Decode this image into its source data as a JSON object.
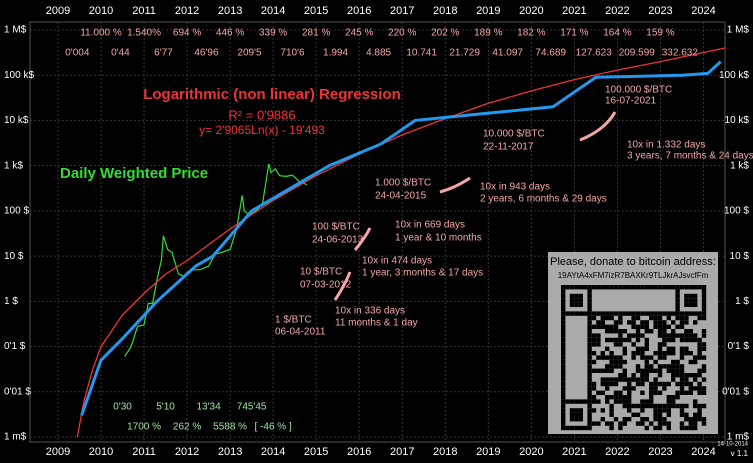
{
  "chart_data": {
    "type": "line",
    "log_y": true,
    "grid": true,
    "xlim": [
      2008.35,
      2024.5
    ],
    "xticks": [
      2009,
      2010,
      2011,
      2012,
      2013,
      2014,
      2015,
      2016,
      2017,
      2018,
      2019,
      2020,
      2021,
      2022,
      2023,
      2024
    ],
    "ylim": [
      0.001,
      1000000
    ],
    "yticks": [
      {
        "value": 1000000,
        "label": "1 M$"
      },
      {
        "value": 100000,
        "label": "100 k$"
      },
      {
        "value": 10000,
        "label": "10 k$"
      },
      {
        "value": 1000,
        "label": "1 k$"
      },
      {
        "value": 100,
        "label": "100 $"
      },
      {
        "value": 10,
        "label": "10 $"
      },
      {
        "value": 1,
        "label": "1 $"
      },
      {
        "value": 0.1,
        "label": "0'1 $"
      },
      {
        "value": 0.01,
        "label": "0'01 $"
      },
      {
        "value": 0.001,
        "label": "1 m$"
      }
    ],
    "series": [
      {
        "name": "Daily Weighted Price",
        "color": "#33dd33",
        "x": [
          2010.55,
          2010.7,
          2010.85,
          2011.0,
          2011.1,
          2011.2,
          2011.3,
          2011.4,
          2011.45,
          2011.55,
          2011.65,
          2011.8,
          2011.95,
          2012.1,
          2012.3,
          2012.5,
          2012.65,
          2012.8,
          2013.0,
          2013.15,
          2013.28,
          2013.33,
          2013.45,
          2013.6,
          2013.75,
          2013.9,
          2013.95,
          2014.05,
          2014.15,
          2014.3,
          2014.45,
          2014.6,
          2014.78
        ],
        "values": [
          0.06,
          0.1,
          0.28,
          0.3,
          0.9,
          0.9,
          3,
          8,
          28,
          14,
          12,
          4,
          3.5,
          5,
          5,
          6,
          11,
          12,
          14,
          40,
          220,
          100,
          80,
          100,
          140,
          1100,
          700,
          850,
          600,
          580,
          620,
          450,
          380
        ]
      },
      {
        "name": "Logarithmic (non linear) Regression",
        "color": "#ee3333",
        "x": [
          2009.45,
          2009.6,
          2009.8,
          2010.0,
          2010.5,
          2011.0,
          2011.5,
          2012.0,
          2013.0,
          2014.0,
          2015.0,
          2016.0,
          2017.0,
          2018.0,
          2019.0,
          2020.0,
          2021.0,
          2022.0,
          2023.0,
          2024.5
        ],
        "values": [
          0.001,
          0.006,
          0.03,
          0.1,
          0.5,
          1.5,
          4,
          8,
          40,
          170,
          600,
          1800,
          4800,
          11000,
          24000,
          45000,
          80000,
          130000,
          200000,
          400000
        ]
      },
      {
        "color": "#2299ee",
        "x": [
          2009.55,
          2010.0,
          2010.5,
          2011.3,
          2012.2,
          2012.6,
          2013.5,
          2015.3,
          2016.5,
          2017.3,
          2018.5,
          2020.5,
          2021.5,
          2023.5,
          2024.1,
          2024.4
        ],
        "values": [
          0.003,
          0.05,
          0.15,
          1,
          6,
          10,
          100,
          1000,
          3000,
          10000,
          13000,
          20000,
          90000,
          100000,
          110000,
          200000
        ]
      }
    ],
    "r_squared": "R² = 0'9886",
    "equation": "y= 2'9065Ln(x) - 19'493",
    "growth_rates": [
      "11.000 %",
      "1.540%",
      "694 %",
      "446 %",
      "339 %",
      "281 %",
      "245 %",
      "220 %",
      "202 %",
      "189 %",
      "182 %",
      "171 %",
      "164 %",
      "159 %"
    ],
    "regression_prices": [
      "0'004",
      "0'44",
      "6'77",
      "46'96",
      "209'5",
      "710'6",
      "1.994",
      "4.885",
      "10.741",
      "21.729",
      "41.097",
      "74.689",
      "127.623",
      "209.599",
      "332.632"
    ],
    "yearly_prices": [
      "0'30",
      "5'10",
      "13'34",
      "745'45"
    ],
    "yearly_growth": [
      "1700 %",
      "262 %",
      "5588 %",
      "[ -46 % ]"
    ],
    "annotations": [
      "1 $/BTC",
      "06-04-2011",
      "10x in 336 days",
      "11 months & 1 day",
      "10 $/BTC",
      "07-03-2012",
      "10x in 474 days",
      "1 year, 3 months & 17 days",
      "100 $/BTC",
      "24-06-2013",
      "10x in 669 days",
      "1 year & 10 months",
      "1.000 $/BTC",
      "24-04-2015",
      "10x in 943 days",
      "2 years, 6 months & 29 days",
      "10.000 $/BTC",
      "22-11-2017",
      "10x  in 1.332 days",
      "3 years, 7 months & 24 days",
      "100.000 $/BTC",
      "16-07-2021"
    ],
    "donation_text": "Please, donate to bitcoin address:",
    "donation_address": "19AYtA4xFM7izR7BAXKr9TLJkrAJsvcfFm",
    "date": "14-10-2014",
    "version": "v 1.1"
  }
}
